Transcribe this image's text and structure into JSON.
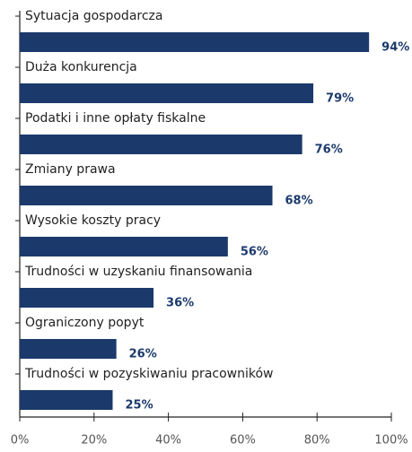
{
  "chart_data": {
    "type": "bar",
    "orientation": "horizontal",
    "categories": [
      "Sytuacja gospodarcza",
      "Duża konkurencja",
      "Podatki i inne opłaty fiskalne",
      "Zmiany prawa",
      "Wysokie koszty pracy",
      "Trudności w uzyskaniu finansowania",
      "Ograniczony popyt",
      "Trudności w pozyskiwaniu pracowników"
    ],
    "values": [
      94,
      79,
      76,
      68,
      56,
      36,
      26,
      25
    ],
    "value_labels": [
      "94%",
      "79%",
      "76%",
      "68%",
      "56%",
      "36%",
      "26%",
      "25%"
    ],
    "color": "#1b3a6b",
    "xlim": [
      0,
      100
    ],
    "xticks": [
      {
        "value": 0,
        "label": "0%"
      },
      {
        "value": 20,
        "label": "20%"
      },
      {
        "value": 40,
        "label": "40%"
      },
      {
        "value": 60,
        "label": "60%"
      },
      {
        "value": 80,
        "label": "80%"
      },
      {
        "value": 100,
        "label": "100%"
      }
    ]
  }
}
